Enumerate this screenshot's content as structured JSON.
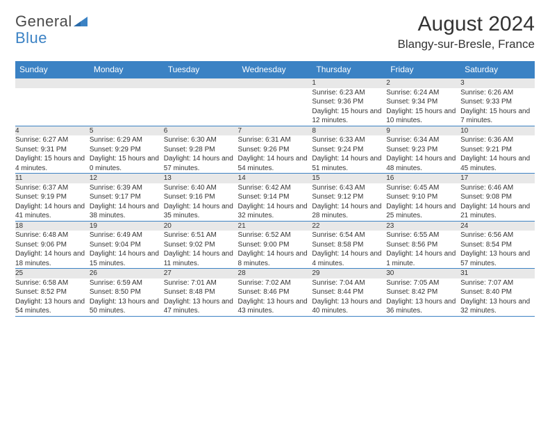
{
  "logo": {
    "general": "General",
    "blue": "Blue"
  },
  "title": "August 2024",
  "location": "Blangy-sur-Bresle, France",
  "colors": {
    "header_bg": "#3b82c4",
    "header_text": "#ffffff",
    "daynum_bg": "#e8e8e8",
    "border": "#3b82c4",
    "text": "#333333",
    "page_bg": "#ffffff"
  },
  "day_headers": [
    "Sunday",
    "Monday",
    "Tuesday",
    "Wednesday",
    "Thursday",
    "Friday",
    "Saturday"
  ],
  "weeks": [
    {
      "nums": [
        "",
        "",
        "",
        "",
        "1",
        "2",
        "3"
      ],
      "details": [
        "",
        "",
        "",
        "",
        "Sunrise: 6:23 AM\nSunset: 9:36 PM\nDaylight: 15 hours and 12 minutes.",
        "Sunrise: 6:24 AM\nSunset: 9:34 PM\nDaylight: 15 hours and 10 minutes.",
        "Sunrise: 6:26 AM\nSunset: 9:33 PM\nDaylight: 15 hours and 7 minutes."
      ]
    },
    {
      "nums": [
        "4",
        "5",
        "6",
        "7",
        "8",
        "9",
        "10"
      ],
      "details": [
        "Sunrise: 6:27 AM\nSunset: 9:31 PM\nDaylight: 15 hours and 4 minutes.",
        "Sunrise: 6:29 AM\nSunset: 9:29 PM\nDaylight: 15 hours and 0 minutes.",
        "Sunrise: 6:30 AM\nSunset: 9:28 PM\nDaylight: 14 hours and 57 minutes.",
        "Sunrise: 6:31 AM\nSunset: 9:26 PM\nDaylight: 14 hours and 54 minutes.",
        "Sunrise: 6:33 AM\nSunset: 9:24 PM\nDaylight: 14 hours and 51 minutes.",
        "Sunrise: 6:34 AM\nSunset: 9:23 PM\nDaylight: 14 hours and 48 minutes.",
        "Sunrise: 6:36 AM\nSunset: 9:21 PM\nDaylight: 14 hours and 45 minutes."
      ]
    },
    {
      "nums": [
        "11",
        "12",
        "13",
        "14",
        "15",
        "16",
        "17"
      ],
      "details": [
        "Sunrise: 6:37 AM\nSunset: 9:19 PM\nDaylight: 14 hours and 41 minutes.",
        "Sunrise: 6:39 AM\nSunset: 9:17 PM\nDaylight: 14 hours and 38 minutes.",
        "Sunrise: 6:40 AM\nSunset: 9:16 PM\nDaylight: 14 hours and 35 minutes.",
        "Sunrise: 6:42 AM\nSunset: 9:14 PM\nDaylight: 14 hours and 32 minutes.",
        "Sunrise: 6:43 AM\nSunset: 9:12 PM\nDaylight: 14 hours and 28 minutes.",
        "Sunrise: 6:45 AM\nSunset: 9:10 PM\nDaylight: 14 hours and 25 minutes.",
        "Sunrise: 6:46 AM\nSunset: 9:08 PM\nDaylight: 14 hours and 21 minutes."
      ]
    },
    {
      "nums": [
        "18",
        "19",
        "20",
        "21",
        "22",
        "23",
        "24"
      ],
      "details": [
        "Sunrise: 6:48 AM\nSunset: 9:06 PM\nDaylight: 14 hours and 18 minutes.",
        "Sunrise: 6:49 AM\nSunset: 9:04 PM\nDaylight: 14 hours and 15 minutes.",
        "Sunrise: 6:51 AM\nSunset: 9:02 PM\nDaylight: 14 hours and 11 minutes.",
        "Sunrise: 6:52 AM\nSunset: 9:00 PM\nDaylight: 14 hours and 8 minutes.",
        "Sunrise: 6:54 AM\nSunset: 8:58 PM\nDaylight: 14 hours and 4 minutes.",
        "Sunrise: 6:55 AM\nSunset: 8:56 PM\nDaylight: 14 hours and 1 minute.",
        "Sunrise: 6:56 AM\nSunset: 8:54 PM\nDaylight: 13 hours and 57 minutes."
      ]
    },
    {
      "nums": [
        "25",
        "26",
        "27",
        "28",
        "29",
        "30",
        "31"
      ],
      "details": [
        "Sunrise: 6:58 AM\nSunset: 8:52 PM\nDaylight: 13 hours and 54 minutes.",
        "Sunrise: 6:59 AM\nSunset: 8:50 PM\nDaylight: 13 hours and 50 minutes.",
        "Sunrise: 7:01 AM\nSunset: 8:48 PM\nDaylight: 13 hours and 47 minutes.",
        "Sunrise: 7:02 AM\nSunset: 8:46 PM\nDaylight: 13 hours and 43 minutes.",
        "Sunrise: 7:04 AM\nSunset: 8:44 PM\nDaylight: 13 hours and 40 minutes.",
        "Sunrise: 7:05 AM\nSunset: 8:42 PM\nDaylight: 13 hours and 36 minutes.",
        "Sunrise: 7:07 AM\nSunset: 8:40 PM\nDaylight: 13 hours and 32 minutes."
      ]
    }
  ]
}
